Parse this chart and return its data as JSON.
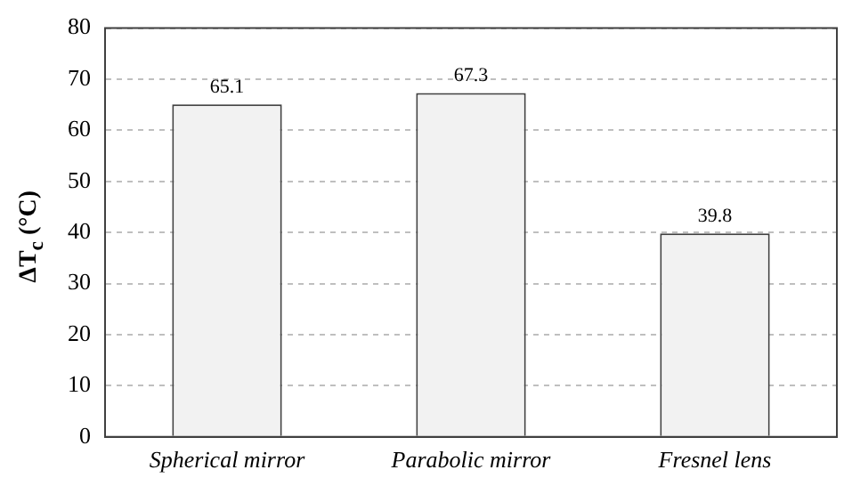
{
  "chart_data": {
    "type": "bar",
    "ylabel": "ΔT$_{c}$ (°C)",
    "categories": [
      "Spherical mirror",
      "Parabolic mirror",
      "Fresnel lens"
    ],
    "values": [
      65.1,
      67.3,
      39.8
    ],
    "color": "#f2f2f2",
    "data_labels": true,
    "ylim": [
      0,
      80
    ],
    "yticks": [
      0,
      10,
      20,
      30,
      40,
      50,
      60,
      70,
      80
    ],
    "grid": "y"
  }
}
